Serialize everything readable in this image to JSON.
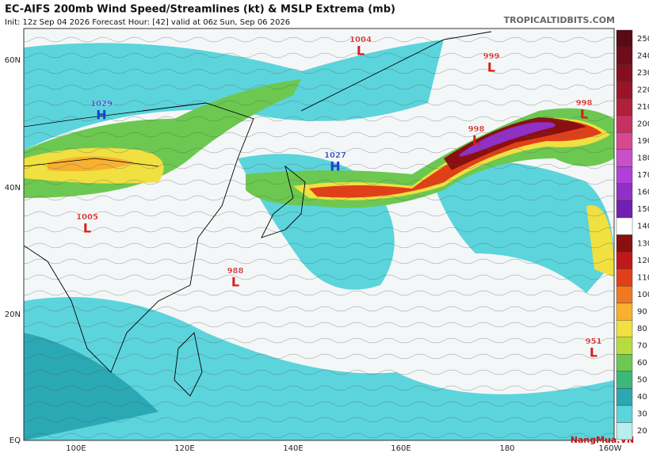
{
  "header": {
    "title": "EC-AIFS 200mb Wind Speed/Streamlines (kt) & MSLP Extrema (mb)",
    "subtitle": "Init: 12z Sep 04 2026   Forecast Hour: [42]   valid at 06z Sun, Sep 06 2026",
    "site": "TROPICALTIDBITS.COM"
  },
  "lat_labels": [
    "60N",
    "40N",
    "20N",
    "EQ"
  ],
  "lon_labels": [
    "100E",
    "120E",
    "140E",
    "160E",
    "180",
    "160W"
  ],
  "colorbar": {
    "ticks": [
      250,
      240,
      230,
      220,
      210,
      200,
      190,
      180,
      170,
      160,
      150,
      140,
      130,
      120,
      110,
      100,
      90,
      80,
      70,
      60,
      50,
      40,
      30,
      20
    ],
    "colors": [
      "#5a0a14",
      "#6e0c1a",
      "#850f20",
      "#9a1428",
      "#b0203a",
      "#c83060",
      "#d84890",
      "#c850c8",
      "#b040d8",
      "#9030c8",
      "#7020b0",
      "#ffffff",
      "#8a1010",
      "#c01818",
      "#e04018",
      "#f07820",
      "#f8b030",
      "#f0e040",
      "#b8dc40",
      "#6cc850",
      "#3cb87c",
      "#2aa8b4",
      "#5cd4dc",
      "#b8eeee"
    ]
  },
  "systems": [
    {
      "value": "1004",
      "letter": "L",
      "color": "#d42020"
    },
    {
      "value": "999",
      "letter": "L",
      "color": "#d42020"
    },
    {
      "value": "1029",
      "letter": "H",
      "color": "#2040c8"
    },
    {
      "value": "998",
      "letter": "L",
      "color": "#d42020"
    },
    {
      "value": "998",
      "letter": "L",
      "color": "#d42020"
    },
    {
      "value": "1027",
      "letter": "H",
      "color": "#2040c8"
    },
    {
      "value": "1005",
      "letter": "L",
      "color": "#d42020"
    },
    {
      "value": "988",
      "letter": "L",
      "color": "#d42020"
    },
    {
      "value": "951",
      "letter": "L",
      "color": "#d42020"
    }
  ],
  "watermark": "NangMua.VN"
}
